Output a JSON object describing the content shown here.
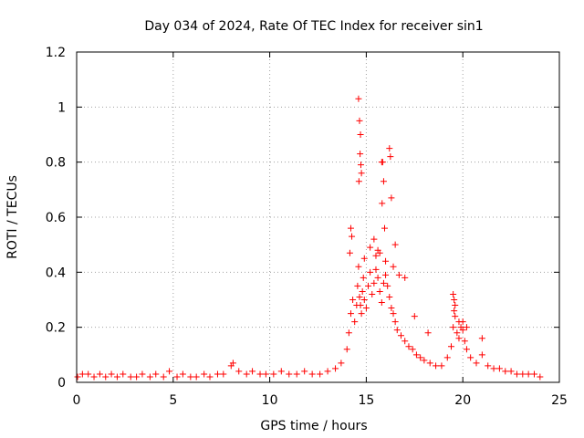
{
  "chart_data": {
    "type": "scatter",
    "title": "Day 034 of 2024, Rate Of TEC Index for receiver sin1",
    "xlabel": "GPS time / hours",
    "ylabel": "ROTI / TECUs",
    "xlim": [
      0,
      25
    ],
    "ylim": [
      0,
      1.2
    ],
    "xticks": [
      0,
      5,
      10,
      15,
      20,
      25
    ],
    "xtick_labels": [
      "0",
      "5",
      "10",
      "15",
      "20",
      "25"
    ],
    "yticks": [
      0,
      0.2,
      0.4,
      0.6,
      0.8,
      1.0,
      1.2
    ],
    "ytick_labels": [
      "0",
      "0.2",
      "0.4",
      "0.6",
      "0.8",
      "1",
      "1.2"
    ],
    "grid": true,
    "marker": "+",
    "series": [
      {
        "name": "ROTI",
        "color": "#ff0000",
        "x": [
          0.05,
          0.3,
          0.6,
          0.9,
          1.2,
          1.5,
          1.8,
          2.1,
          2.4,
          2.8,
          3.1,
          3.4,
          3.8,
          4.1,
          4.5,
          4.8,
          5.2,
          5.5,
          5.9,
          6.2,
          6.6,
          6.9,
          7.3,
          7.6,
          8.0,
          8.1,
          8.4,
          8.8,
          9.1,
          9.5,
          9.8,
          10.2,
          10.6,
          11.0,
          11.4,
          11.8,
          12.2,
          12.6,
          13.0,
          13.4,
          13.7,
          14.0,
          14.1,
          14.2,
          14.3,
          14.4,
          14.5,
          14.55,
          14.6,
          14.65,
          14.7,
          14.75,
          14.8,
          14.85,
          14.9,
          15.0,
          15.1,
          15.2,
          15.3,
          15.4,
          15.5,
          15.6,
          15.7,
          15.8,
          15.9,
          16.0,
          16.1,
          16.2,
          16.3,
          16.4,
          16.5,
          16.6,
          16.8,
          17.0,
          17.2,
          17.4,
          17.6,
          17.8,
          18.0,
          18.3,
          18.6,
          18.9,
          19.2,
          19.4,
          19.5,
          19.55,
          19.6,
          19.7,
          19.8,
          19.9,
          20.0,
          20.1,
          20.2,
          20.4,
          20.7,
          21.0,
          21.3,
          21.6,
          21.9,
          22.2,
          22.5,
          22.8,
          23.1,
          23.4,
          23.7,
          24.0,
          14.6,
          14.65,
          14.7,
          14.68,
          14.72,
          14.75,
          14.62,
          15.8,
          15.85,
          15.9,
          15.82,
          15.95,
          16.2,
          16.25,
          16.3,
          15.4,
          15.6,
          14.2,
          14.25,
          14.15,
          16.5,
          17.0,
          19.5,
          19.55,
          20.0,
          21.0,
          14.9,
          15.2,
          15.5,
          15.7,
          16.0,
          16.4,
          16.7,
          17.5,
          18.2,
          19.6,
          19.8,
          20.2
        ],
        "y": [
          0.02,
          0.03,
          0.03,
          0.02,
          0.03,
          0.02,
          0.03,
          0.02,
          0.03,
          0.02,
          0.02,
          0.03,
          0.02,
          0.03,
          0.02,
          0.04,
          0.02,
          0.03,
          0.02,
          0.02,
          0.03,
          0.02,
          0.03,
          0.03,
          0.06,
          0.07,
          0.04,
          0.03,
          0.04,
          0.03,
          0.03,
          0.03,
          0.04,
          0.03,
          0.03,
          0.04,
          0.03,
          0.03,
          0.04,
          0.05,
          0.07,
          0.12,
          0.18,
          0.25,
          0.3,
          0.22,
          0.28,
          0.35,
          0.42,
          0.31,
          0.28,
          0.25,
          0.33,
          0.38,
          0.3,
          0.27,
          0.35,
          0.4,
          0.32,
          0.36,
          0.41,
          0.38,
          0.33,
          0.29,
          0.36,
          0.39,
          0.35,
          0.31,
          0.27,
          0.25,
          0.22,
          0.19,
          0.17,
          0.15,
          0.13,
          0.12,
          0.1,
          0.09,
          0.08,
          0.07,
          0.06,
          0.06,
          0.09,
          0.13,
          0.2,
          0.26,
          0.24,
          0.18,
          0.16,
          0.2,
          0.19,
          0.15,
          0.12,
          0.09,
          0.07,
          0.1,
          0.06,
          0.05,
          0.05,
          0.04,
          0.04,
          0.03,
          0.03,
          0.03,
          0.03,
          0.02,
          1.03,
          0.95,
          0.9,
          0.83,
          0.79,
          0.76,
          0.73,
          0.8,
          0.8,
          0.73,
          0.65,
          0.56,
          0.85,
          0.82,
          0.67,
          0.52,
          0.48,
          0.56,
          0.53,
          0.47,
          0.5,
          0.38,
          0.32,
          0.3,
          0.22,
          0.16,
          0.45,
          0.49,
          0.46,
          0.47,
          0.44,
          0.42,
          0.39,
          0.24,
          0.18,
          0.28,
          0.22,
          0.2
        ]
      }
    ]
  }
}
